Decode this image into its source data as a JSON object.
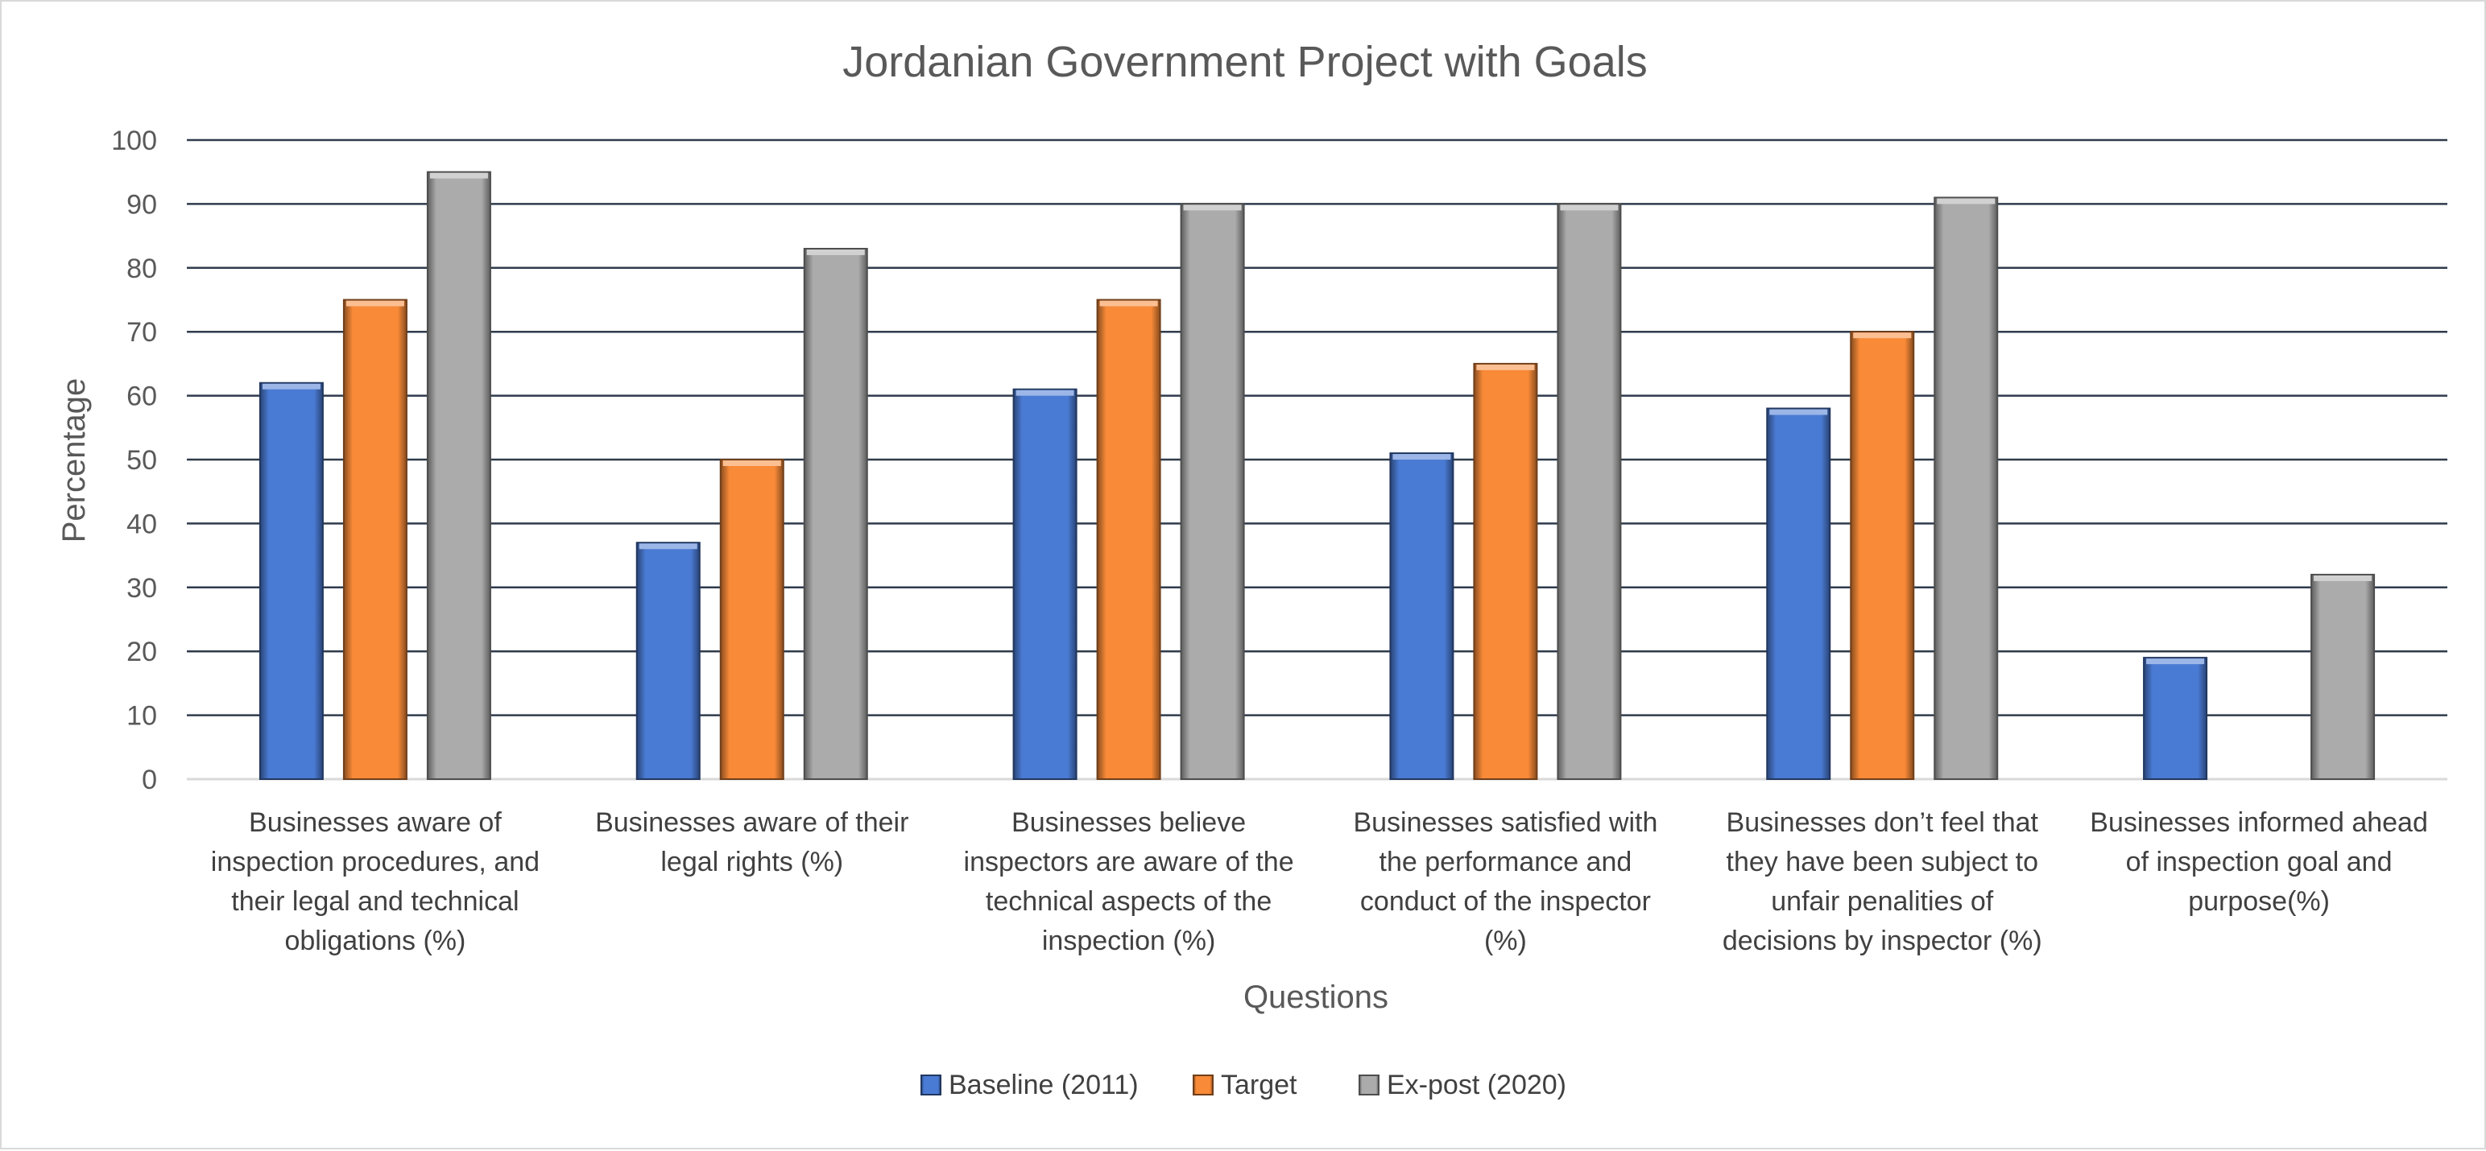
{
  "chart_data": {
    "type": "bar",
    "title": "Jordanian Government Project with Goals",
    "xlabel": "Questions",
    "ylabel": "Percentage",
    "ylim": [
      0,
      100
    ],
    "yticks": [
      0,
      10,
      20,
      30,
      40,
      50,
      60,
      70,
      80,
      90,
      100
    ],
    "grid": true,
    "legend_position": "bottom",
    "categories": [
      [
        "Businesses aware of",
        "inspection procedures, and",
        "their legal and technical",
        "obligations (%)"
      ],
      [
        "Businesses aware of their",
        "legal rights (%)"
      ],
      [
        "Businesses believe",
        "inspectors are aware of the",
        "technical aspects of the",
        "inspection (%)"
      ],
      [
        "Businesses satisfied with",
        "the performance and",
        "conduct of the inspector",
        "(%)"
      ],
      [
        "Businesses don’t feel that",
        "they have been subject to",
        "unfair penalities of",
        "decisions by inspector (%)"
      ],
      [
        "Businesses informed ahead",
        "of inspection goal and",
        "purpose(%)"
      ]
    ],
    "series": [
      {
        "name": "Baseline (2011)",
        "color": "#4a7bd4",
        "values": [
          62,
          37,
          61,
          51,
          58,
          19
        ]
      },
      {
        "name": "Target",
        "color": "#f88a38",
        "values": [
          75,
          50,
          75,
          65,
          70,
          null
        ]
      },
      {
        "name": "Ex-post (2020)",
        "color": "#ababab",
        "values": [
          95,
          83,
          90,
          90,
          91,
          32
        ]
      }
    ]
  }
}
